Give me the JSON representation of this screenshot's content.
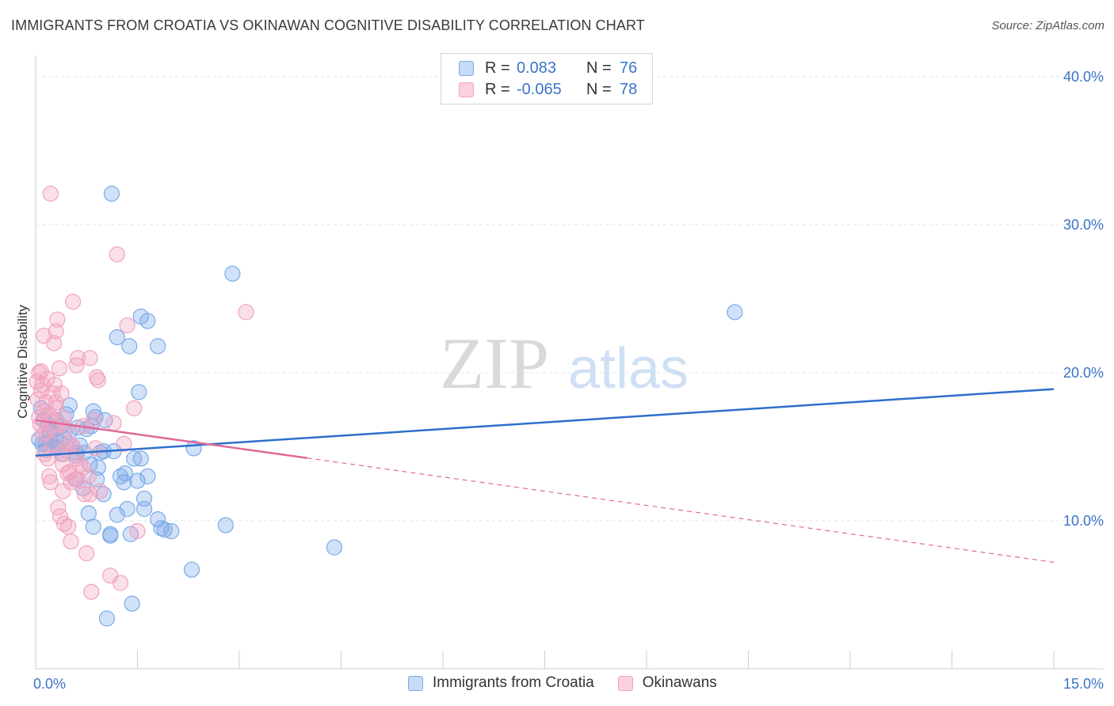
{
  "header": {
    "title": "IMMIGRANTS FROM CROATIA VS OKINAWAN COGNITIVE DISABILITY CORRELATION CHART",
    "source": "Source: ZipAtlas.com"
  },
  "watermark": {
    "zip": "ZIP",
    "atlas": "atlas"
  },
  "legend": {
    "rows": [
      {
        "r_label": "R =",
        "r_value": "0.083",
        "n_label": "N =",
        "n_value": "76"
      },
      {
        "r_label": "R =",
        "r_value": "-0.065",
        "n_label": "N =",
        "n_value": "78"
      }
    ]
  },
  "bottom_legend": [
    {
      "label": "Immigrants from Croatia"
    },
    {
      "label": "Okinawans"
    }
  ],
  "chart_data": {
    "type": "scatter",
    "title": "IMMIGRANTS FROM CROATIA VS OKINAWAN COGNITIVE DISABILITY CORRELATION CHART",
    "xlabel": "",
    "ylabel": "Cognitive Disability",
    "xlim": [
      0,
      15
    ],
    "ylim": [
      0,
      40
    ],
    "x_tick_labels": [
      "0.0%",
      "15.0%"
    ],
    "y_ticks": [
      10,
      20,
      30,
      40
    ],
    "y_tick_labels": [
      "10.0%",
      "20.0%",
      "30.0%",
      "40.0%"
    ],
    "grid": true,
    "series": [
      {
        "name": "Immigrants from Croatia",
        "color": "#7aaae8",
        "line_color": "#2e6fcc",
        "r": 0.083,
        "n": 76,
        "trend": {
          "x": [
            0,
            15
          ],
          "y": [
            14.4,
            18.9
          ],
          "dashed_from": null
        },
        "points": [
          [
            0.05,
            15.5
          ],
          [
            0.08,
            17.6
          ],
          [
            0.1,
            15.2
          ],
          [
            0.12,
            16.8
          ],
          [
            0.15,
            14.8
          ],
          [
            0.18,
            16.5
          ],
          [
            0.2,
            16.0
          ],
          [
            0.22,
            15.4
          ],
          [
            0.25,
            16.2
          ],
          [
            0.28,
            15.0
          ],
          [
            0.3,
            16.8
          ],
          [
            0.32,
            14.9
          ],
          [
            0.35,
            15.3
          ],
          [
            0.38,
            16.4
          ],
          [
            0.4,
            14.5
          ],
          [
            0.42,
            15.6
          ],
          [
            0.45,
            17.2
          ],
          [
            0.5,
            16.0
          ],
          [
            0.5,
            17.8
          ],
          [
            0.55,
            15.0
          ],
          [
            0.6,
            14.4
          ],
          [
            0.6,
            12.8
          ],
          [
            0.62,
            16.3
          ],
          [
            0.65,
            15.1
          ],
          [
            0.7,
            12.2
          ],
          [
            0.72,
            14.6
          ],
          [
            0.75,
            16.2
          ],
          [
            0.78,
            10.5
          ],
          [
            0.8,
            13.8
          ],
          [
            0.82,
            16.4
          ],
          [
            0.85,
            9.6
          ],
          [
            0.85,
            17.4
          ],
          [
            0.88,
            17.0
          ],
          [
            0.9,
            12.8
          ],
          [
            0.92,
            13.6
          ],
          [
            0.95,
            14.6
          ],
          [
            1.0,
            14.7
          ],
          [
            1.0,
            11.8
          ],
          [
            1.02,
            16.8
          ],
          [
            1.05,
            3.4
          ],
          [
            1.1,
            9.0
          ],
          [
            1.1,
            9.1
          ],
          [
            1.12,
            32.1
          ],
          [
            1.15,
            14.7
          ],
          [
            1.2,
            10.4
          ],
          [
            1.2,
            22.4
          ],
          [
            1.25,
            13.0
          ],
          [
            1.3,
            12.6
          ],
          [
            1.32,
            13.2
          ],
          [
            1.35,
            10.8
          ],
          [
            1.38,
            21.8
          ],
          [
            1.4,
            9.1
          ],
          [
            1.42,
            4.4
          ],
          [
            1.45,
            14.2
          ],
          [
            1.5,
            12.7
          ],
          [
            1.52,
            18.7
          ],
          [
            1.55,
            14.2
          ],
          [
            1.55,
            23.8
          ],
          [
            1.6,
            11.5
          ],
          [
            1.6,
            10.8
          ],
          [
            1.65,
            23.5
          ],
          [
            1.65,
            13.0
          ],
          [
            1.8,
            21.8
          ],
          [
            1.8,
            10.1
          ],
          [
            1.85,
            9.5
          ],
          [
            1.9,
            9.4
          ],
          [
            2.0,
            9.3
          ],
          [
            2.3,
            6.7
          ],
          [
            2.33,
            14.9
          ],
          [
            2.8,
            9.7
          ],
          [
            2.9,
            26.7
          ],
          [
            4.4,
            8.2
          ],
          [
            10.3,
            24.1
          ],
          [
            0.15,
            15.2
          ],
          [
            0.3,
            15.4
          ],
          [
            0.6,
            14.6
          ]
        ]
      },
      {
        "name": "Okinawans",
        "color": "#f2a3bf",
        "line_color": "#e0699a",
        "r": -0.065,
        "n": 78,
        "trend": {
          "x": [
            0,
            15
          ],
          "y": [
            16.8,
            7.2
          ],
          "dashed_from": 4.0
        },
        "points": [
          [
            0.02,
            19.4
          ],
          [
            0.03,
            18.2
          ],
          [
            0.05,
            20.0
          ],
          [
            0.05,
            17.0
          ],
          [
            0.07,
            16.5
          ],
          [
            0.08,
            18.8
          ],
          [
            0.1,
            19.2
          ],
          [
            0.1,
            15.8
          ],
          [
            0.12,
            17.4
          ],
          [
            0.12,
            22.5
          ],
          [
            0.13,
            14.5
          ],
          [
            0.15,
            18.0
          ],
          [
            0.15,
            16.0
          ],
          [
            0.17,
            19.6
          ],
          [
            0.18,
            14.2
          ],
          [
            0.2,
            13.0
          ],
          [
            0.2,
            17.2
          ],
          [
            0.22,
            32.1
          ],
          [
            0.22,
            12.6
          ],
          [
            0.25,
            18.6
          ],
          [
            0.25,
            15.2
          ],
          [
            0.27,
            22.0
          ],
          [
            0.28,
            19.2
          ],
          [
            0.3,
            17.6
          ],
          [
            0.3,
            18.0
          ],
          [
            0.3,
            22.8
          ],
          [
            0.32,
            23.6
          ],
          [
            0.33,
            10.9
          ],
          [
            0.35,
            20.3
          ],
          [
            0.35,
            16.5
          ],
          [
            0.36,
            10.3
          ],
          [
            0.38,
            18.6
          ],
          [
            0.38,
            14.5
          ],
          [
            0.4,
            13.8
          ],
          [
            0.4,
            12.0
          ],
          [
            0.42,
            9.8
          ],
          [
            0.45,
            16.2
          ],
          [
            0.45,
            14.8
          ],
          [
            0.47,
            13.2
          ],
          [
            0.48,
            9.6
          ],
          [
            0.5,
            15.2
          ],
          [
            0.5,
            13.3
          ],
          [
            0.52,
            12.6
          ],
          [
            0.52,
            8.6
          ],
          [
            0.55,
            24.8
          ],
          [
            0.55,
            15.0
          ],
          [
            0.58,
            12.8
          ],
          [
            0.6,
            14.2
          ],
          [
            0.6,
            20.5
          ],
          [
            0.62,
            21.0
          ],
          [
            0.65,
            13.8
          ],
          [
            0.65,
            12.7
          ],
          [
            0.7,
            16.4
          ],
          [
            0.7,
            13.6
          ],
          [
            0.72,
            11.8
          ],
          [
            0.75,
            7.8
          ],
          [
            0.78,
            13.0
          ],
          [
            0.8,
            11.8
          ],
          [
            0.8,
            21.0
          ],
          [
            0.82,
            5.2
          ],
          [
            0.85,
            16.8
          ],
          [
            0.88,
            14.9
          ],
          [
            0.9,
            19.7
          ],
          [
            0.92,
            19.5
          ],
          [
            0.95,
            12.0
          ],
          [
            1.1,
            6.3
          ],
          [
            1.15,
            16.6
          ],
          [
            1.2,
            28.0
          ],
          [
            1.25,
            5.8
          ],
          [
            1.3,
            15.2
          ],
          [
            1.35,
            23.2
          ],
          [
            1.45,
            17.6
          ],
          [
            1.5,
            9.3
          ],
          [
            3.1,
            24.1
          ],
          [
            0.08,
            20.1
          ],
          [
            0.18,
            17.1
          ],
          [
            0.26,
            16.3
          ],
          [
            0.42,
            16.9
          ]
        ]
      }
    ]
  }
}
